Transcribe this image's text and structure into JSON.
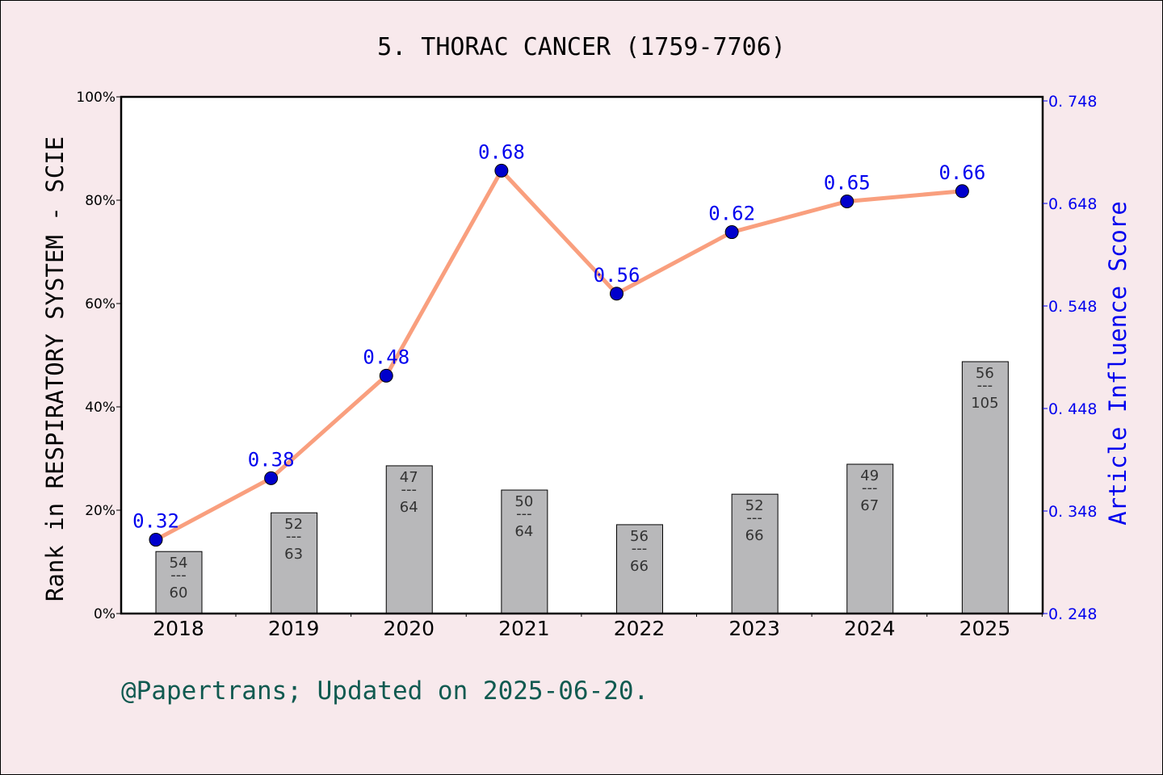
{
  "chart_data": {
    "type": "bar+line",
    "title": "5. THORAC CANCER (1759-7706)",
    "footer": "@Papertrans; Updated on 2025-06-20.",
    "categories": [
      "2018",
      "2019",
      "2020",
      "2021",
      "2022",
      "2023",
      "2024",
      "2025"
    ],
    "left_axis": {
      "label": "Rank in RESPIRATORY SYSTEM - SCIE",
      "ylim": [
        0,
        100
      ],
      "ticks": [
        "0%",
        "20%",
        "40%",
        "60%",
        "80%",
        "100%"
      ]
    },
    "right_axis": {
      "label": "Article Influence Score",
      "ylim": [
        0.248,
        0.748
      ],
      "ticks": [
        "0.248",
        "0.348",
        "0.448",
        "0.548",
        "0.648",
        "0.748"
      ]
    },
    "bars": {
      "values_percent": [
        12.0,
        19.5,
        28.6,
        23.9,
        17.2,
        23.1,
        28.9,
        48.75
      ],
      "rank": [
        "54",
        "52",
        "47",
        "50",
        "56",
        "52",
        "49",
        "56"
      ],
      "total": [
        "60",
        "63",
        "64",
        "64",
        "66",
        "66",
        "67",
        "105"
      ],
      "color": "#b8b8ba"
    },
    "line": {
      "values": [
        0.32,
        0.38,
        0.48,
        0.68,
        0.56,
        0.62,
        0.65,
        0.66
      ],
      "labels": [
        "0.32",
        "0.38",
        "0.48",
        "0.68",
        "0.56",
        "0.62",
        "0.65",
        "0.66"
      ],
      "line_color": "#f99f7e",
      "marker_color": "#0000cc"
    },
    "grid": false
  }
}
